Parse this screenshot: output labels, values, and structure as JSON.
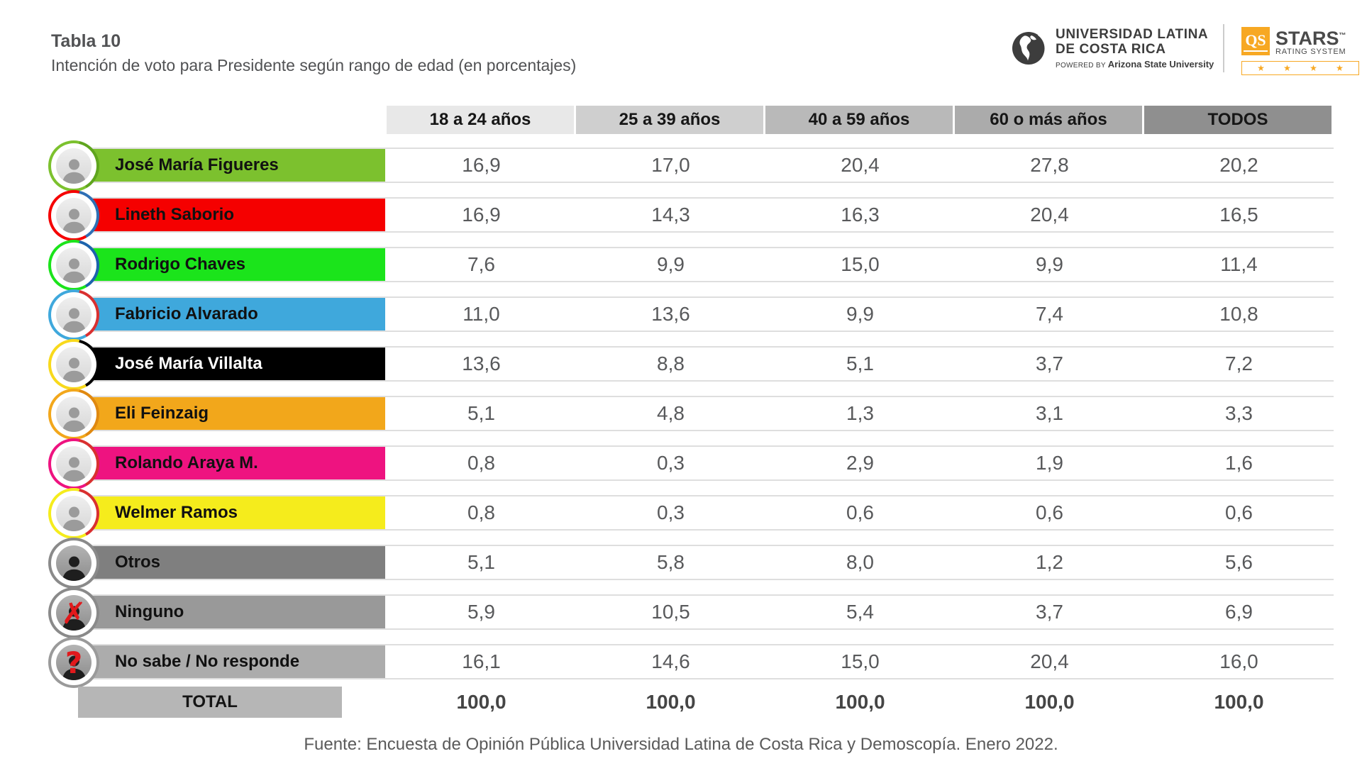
{
  "header": {
    "table_label": "Tabla 10",
    "title": "Intención de voto para Presidente según rango de edad (en porcentajes)",
    "logos": {
      "ulatina": {
        "line1": "UNIVERSIDAD LATINA",
        "line2": "DE COSTA RICA",
        "powered_by": "POWERED BY",
        "powered_by_org": "Arizona State University"
      },
      "qs": {
        "box_label": "QS",
        "name": "STARS",
        "tm": "™",
        "subtitle": "RATING SYSTEM",
        "stars_count": 4,
        "star_glyph": "★",
        "accent_color": "#F7A823"
      }
    }
  },
  "table": {
    "columns": [
      {
        "label": "18 a 24 años",
        "bg": "#E8E8E8"
      },
      {
        "label": "25 a 39 años",
        "bg": "#CFCFCF"
      },
      {
        "label": "40 a 59 años",
        "bg": "#B9B9B9"
      },
      {
        "label": "60 o más años",
        "bg": "#ABABAB"
      },
      {
        "label": "TODOS",
        "bg": "#8F8F8F"
      }
    ],
    "rows": [
      {
        "name": "José María Figueres",
        "bar_color": "#7CC12E",
        "text_color": "#111111",
        "ring_colors": [
          "#7CC12E",
          "#5FA51E"
        ],
        "avatar": "photo",
        "overlay_glyph": "",
        "values": [
          "16,9",
          "17,0",
          "20,4",
          "27,8",
          "20,2"
        ]
      },
      {
        "name": "Lineth Saborio",
        "bar_color": "#F50000",
        "text_color": "#111111",
        "ring_colors": [
          "#F50000",
          "#2E6FB5"
        ],
        "avatar": "photo",
        "overlay_glyph": "",
        "values": [
          "16,9",
          "14,3",
          "16,3",
          "20,4",
          "16,5"
        ]
      },
      {
        "name": "Rodrigo Chaves",
        "bar_color": "#1BE41B",
        "text_color": "#111111",
        "ring_colors": [
          "#1BE41B",
          "#1C63AC"
        ],
        "avatar": "photo",
        "overlay_glyph": "",
        "values": [
          "7,6",
          "9,9",
          "15,0",
          "9,9",
          "11,4"
        ]
      },
      {
        "name": "Fabricio Alvarado",
        "bar_color": "#3FA8DC",
        "text_color": "#111111",
        "ring_colors": [
          "#3FA8DC",
          "#D93030"
        ],
        "avatar": "photo",
        "overlay_glyph": "",
        "values": [
          "11,0",
          "13,6",
          "9,9",
          "7,4",
          "10,8"
        ]
      },
      {
        "name": "José María Villalta",
        "bar_color": "#000000",
        "text_color": "#ffffff",
        "ring_colors": [
          "#F8D91C",
          "#000000"
        ],
        "avatar": "photo",
        "overlay_glyph": "",
        "values": [
          "13,6",
          "8,8",
          "5,1",
          "3,7",
          "7,2"
        ]
      },
      {
        "name": "Eli Feinzaig",
        "bar_color": "#F2A71B",
        "text_color": "#111111",
        "ring_colors": [
          "#F2A71B",
          "#E08910"
        ],
        "avatar": "photo",
        "overlay_glyph": "",
        "values": [
          "5,1",
          "4,8",
          "1,3",
          "3,1",
          "3,3"
        ]
      },
      {
        "name": "Rolando Araya M.",
        "bar_color": "#EE1380",
        "text_color": "#111111",
        "ring_colors": [
          "#EE1380",
          "#D93030"
        ],
        "avatar": "photo",
        "overlay_glyph": "",
        "values": [
          "0,8",
          "0,3",
          "2,9",
          "1,9",
          "1,6"
        ]
      },
      {
        "name": "Welmer Ramos",
        "bar_color": "#F5EC1C",
        "text_color": "#111111",
        "ring_colors": [
          "#F5EC1C",
          "#D93030"
        ],
        "avatar": "photo",
        "overlay_glyph": "",
        "values": [
          "0,8",
          "0,3",
          "0,6",
          "0,6",
          "0,6"
        ]
      },
      {
        "name": "Otros",
        "bar_color": "#7F7F7F",
        "text_color": "#111111",
        "ring_colors": [
          "#8A8A8A",
          "#8A8A8A"
        ],
        "avatar": "silhouette",
        "overlay_glyph": "",
        "values": [
          "5,1",
          "5,8",
          "8,0",
          "1,2",
          "5,6"
        ]
      },
      {
        "name": "Ninguno",
        "bar_color": "#999999",
        "text_color": "#111111",
        "ring_colors": [
          "#8A8A8A",
          "#8A8A8A"
        ],
        "avatar": "silhouette",
        "overlay_glyph": "✗",
        "values": [
          "5,9",
          "10,5",
          "5,4",
          "3,7",
          "6,9"
        ]
      },
      {
        "name": "No sabe / No responde",
        "bar_color": "#ACACAC",
        "text_color": "#111111",
        "ring_colors": [
          "#9A9A9A",
          "#9A9A9A"
        ],
        "avatar": "silhouette",
        "overlay_glyph": "?",
        "values": [
          "16,1",
          "14,6",
          "15,0",
          "20,4",
          "16,0"
        ]
      }
    ],
    "total": {
      "label": "TOTAL",
      "values": [
        "100,0",
        "100,0",
        "100,0",
        "100,0",
        "100,0"
      ]
    }
  },
  "footer": {
    "source": "Fuente: Encuesta de Opinión Pública Universidad Latina de Costa Rica y Demoscopía. Enero 2022."
  },
  "chart_data": {
    "type": "table",
    "title": "Tabla 10 — Intención de voto para Presidente según rango de edad (en porcentajes)",
    "categories": [
      "18 a 24 años",
      "25 a 39 años",
      "40 a 59 años",
      "60 o más años",
      "TODOS"
    ],
    "series": [
      {
        "name": "José María Figueres",
        "values": [
          16.9,
          17.0,
          20.4,
          27.8,
          20.2
        ]
      },
      {
        "name": "Lineth Saborio",
        "values": [
          16.9,
          14.3,
          16.3,
          20.4,
          16.5
        ]
      },
      {
        "name": "Rodrigo Chaves",
        "values": [
          7.6,
          9.9,
          15.0,
          9.9,
          11.4
        ]
      },
      {
        "name": "Fabricio Alvarado",
        "values": [
          11.0,
          13.6,
          9.9,
          7.4,
          10.8
        ]
      },
      {
        "name": "José María Villalta",
        "values": [
          13.6,
          8.8,
          5.1,
          3.7,
          7.2
        ]
      },
      {
        "name": "Eli Feinzaig",
        "values": [
          5.1,
          4.8,
          1.3,
          3.1,
          3.3
        ]
      },
      {
        "name": "Rolando Araya M.",
        "values": [
          0.8,
          0.3,
          2.9,
          1.9,
          1.6
        ]
      },
      {
        "name": "Welmer Ramos",
        "values": [
          0.8,
          0.3,
          0.6,
          0.6,
          0.6
        ]
      },
      {
        "name": "Otros",
        "values": [
          5.1,
          5.8,
          8.0,
          1.2,
          5.6
        ]
      },
      {
        "name": "Ninguno",
        "values": [
          5.9,
          10.5,
          5.4,
          3.7,
          6.9
        ]
      },
      {
        "name": "No sabe / No responde",
        "values": [
          16.1,
          14.6,
          15.0,
          20.4,
          16.0
        ]
      },
      {
        "name": "TOTAL",
        "values": [
          100.0,
          100.0,
          100.0,
          100.0,
          100.0
        ]
      }
    ],
    "source": "Fuente: Encuesta de Opinión Pública Universidad Latina de Costa Rica y Demoscopía. Enero 2022."
  }
}
